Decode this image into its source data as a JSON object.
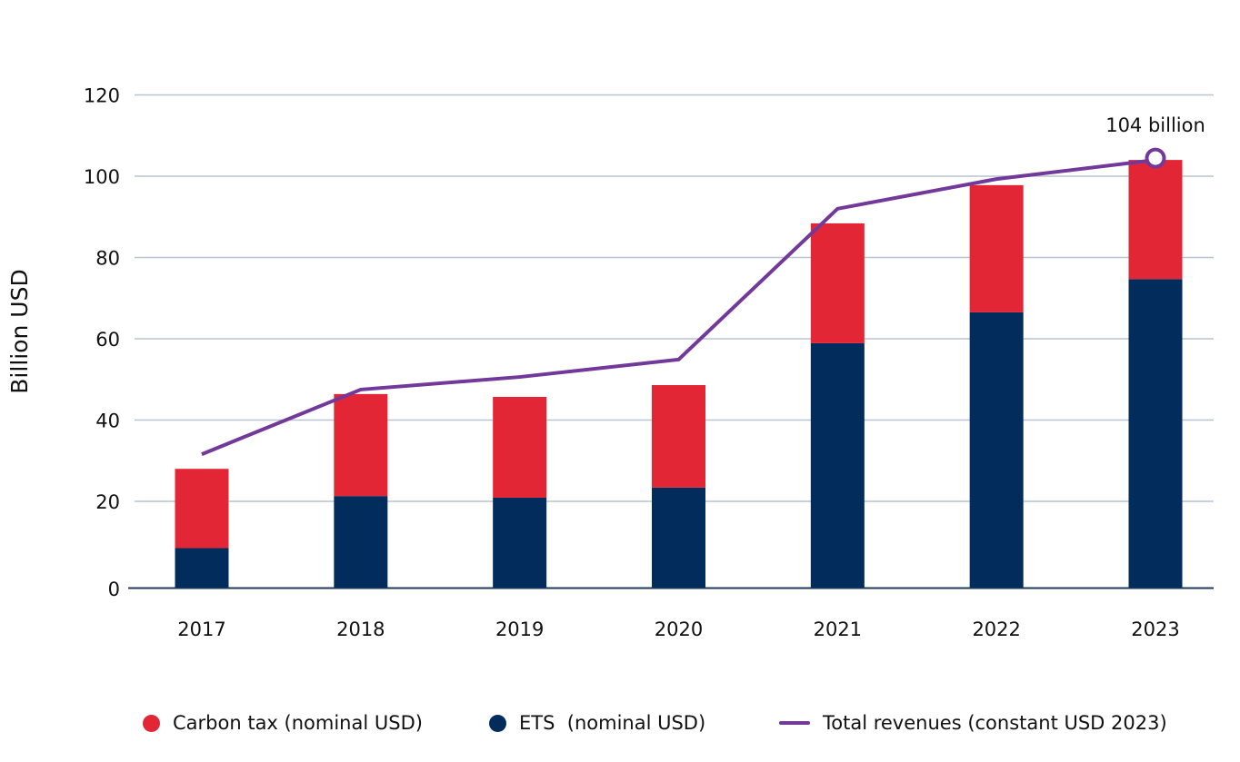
{
  "chart_data": {
    "type": "bar",
    "stacked": true,
    "title": "",
    "xlabel": "",
    "ylabel": "Billion USD",
    "ylim": [
      0,
      120
    ],
    "yticks": [
      0,
      20,
      40,
      60,
      80,
      100,
      120
    ],
    "grid": true,
    "categories": [
      "2017",
      "2018",
      "2019",
      "2020",
      "2021",
      "2022",
      "2023"
    ],
    "series": [
      {
        "name": "ETS  (nominal USD)",
        "kind": "bar",
        "color": "#012c5b",
        "values": [
          8.5,
          21.3,
          20.9,
          23.4,
          58.9,
          66.5,
          74.7
        ]
      },
      {
        "name": "Carbon tax (nominal USD)",
        "kind": "bar",
        "color": "#e32636",
        "values": [
          19.5,
          25.1,
          24.8,
          25.2,
          29.5,
          31.3,
          29.3
        ]
      },
      {
        "name": "Total revenues (constant USD 2023)",
        "kind": "line",
        "color": "#72399a",
        "values": [
          31.6,
          47.5,
          50.6,
          54.9,
          92.0,
          99.3,
          104.0
        ]
      }
    ],
    "annotations": [
      {
        "text": "104 billion",
        "category": "2023",
        "value": 104.0,
        "marker": "open-circle"
      }
    ],
    "legend": {
      "placement": "bottom",
      "items": [
        {
          "label": "Carbon tax (nominal USD)",
          "symbol": "dot",
          "color": "#e32636"
        },
        {
          "label": "ETS  (nominal USD)",
          "symbol": "dot",
          "color": "#012c5b"
        },
        {
          "label": "Total revenues (constant USD 2023)",
          "symbol": "line",
          "color": "#72399a"
        }
      ]
    },
    "colors": {
      "grid": "#b8c4d2",
      "axis": "#1f3a5c",
      "text": "#111111"
    }
  }
}
